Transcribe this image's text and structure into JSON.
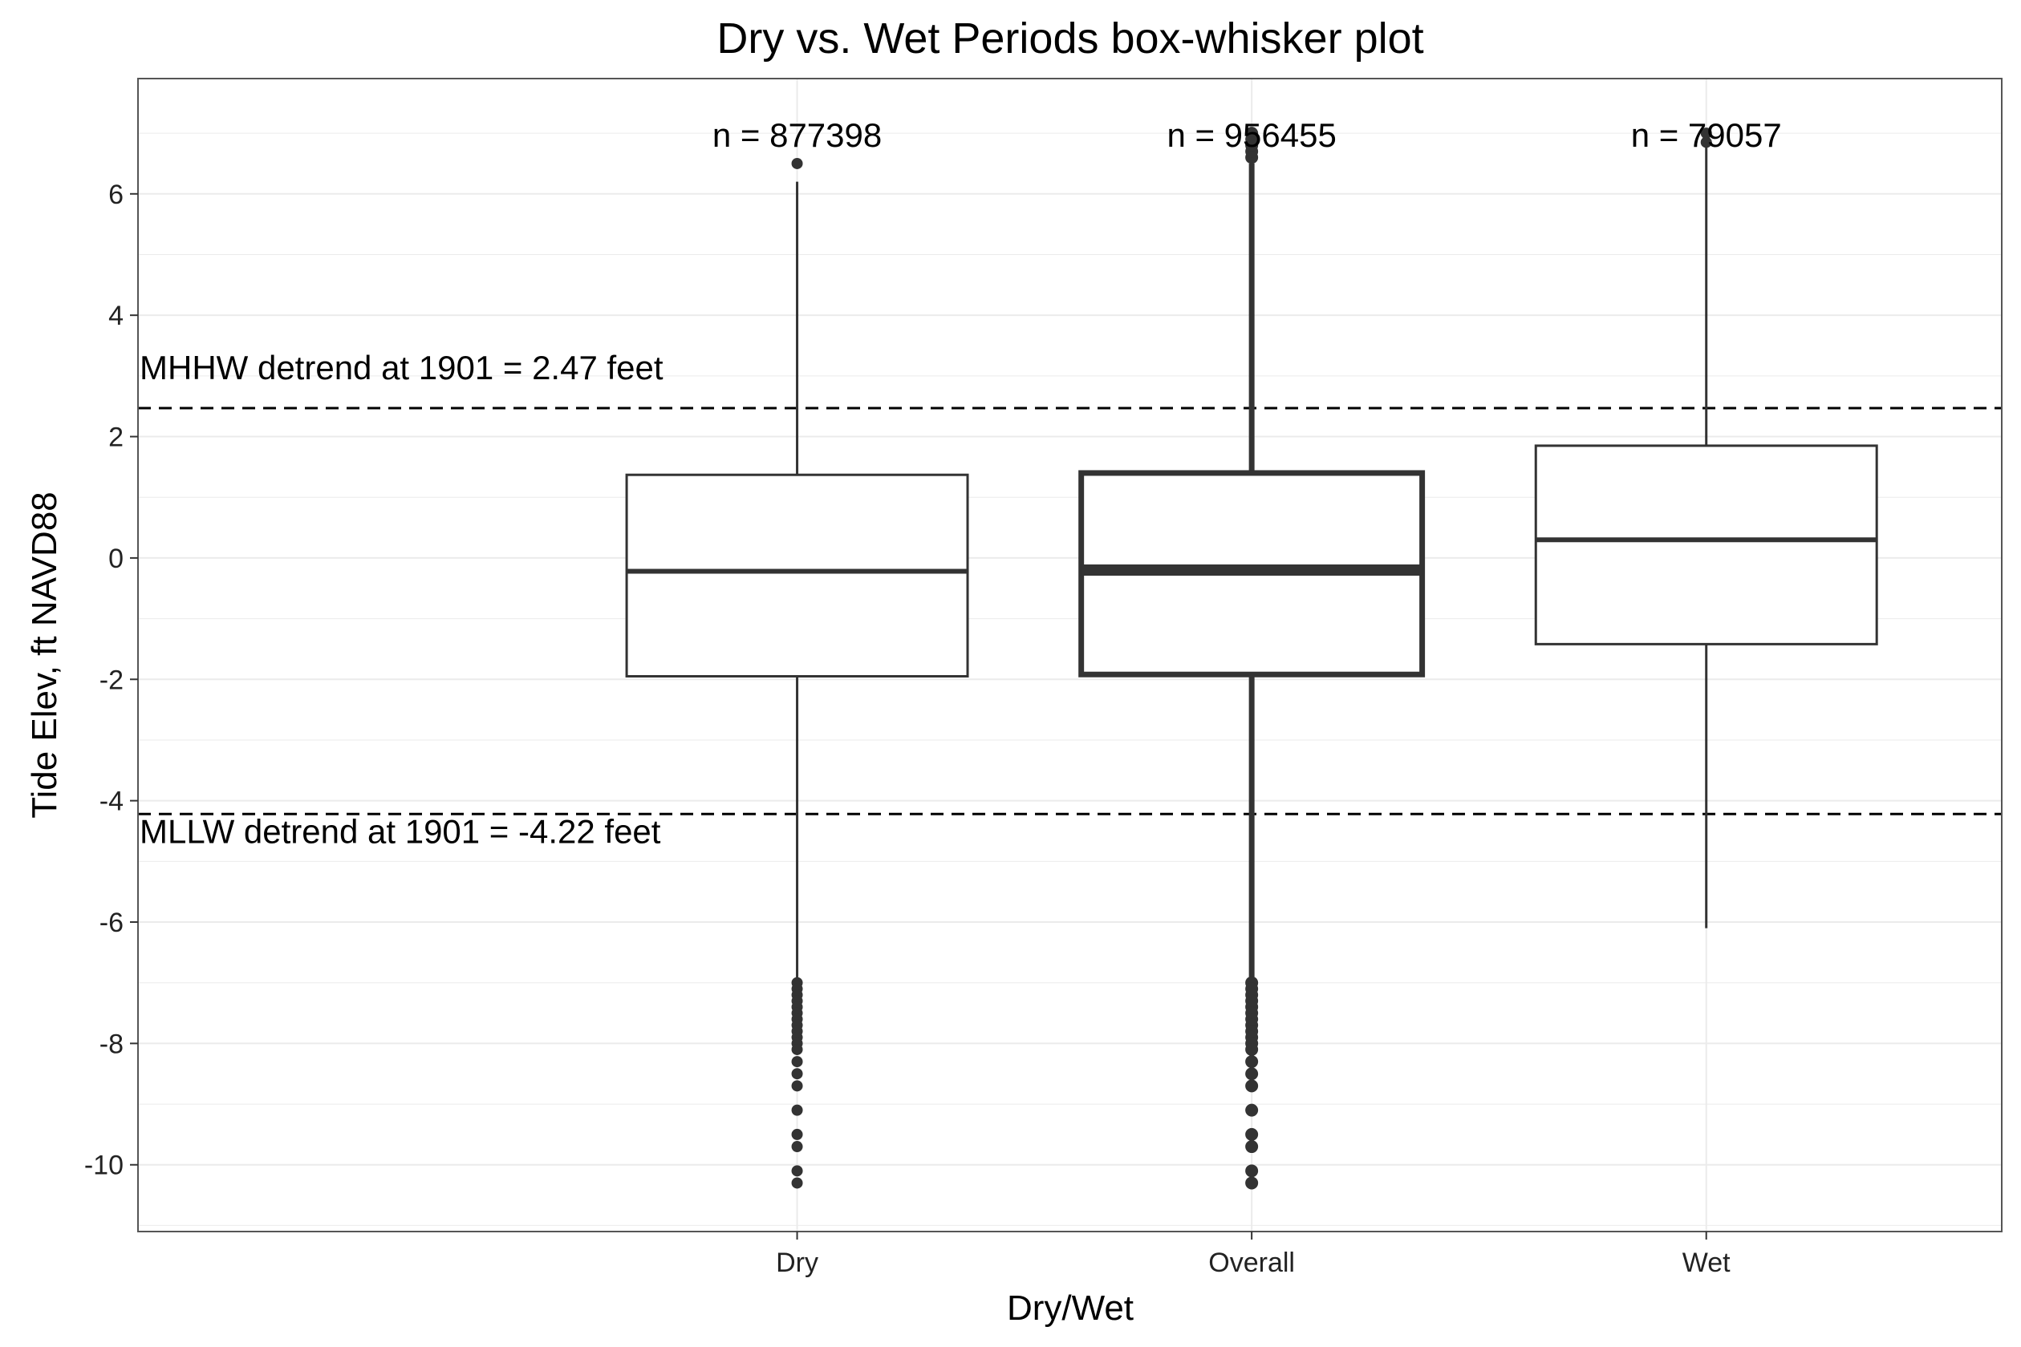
{
  "chart_data": {
    "type": "box",
    "title": "Dry vs. Wet Periods box-whisker plot",
    "xlabel": "Dry/Wet",
    "ylabel": "Tide Elev, ft NAVD88",
    "ylim": [
      -11.1,
      7.9
    ],
    "yticks": [
      6,
      4,
      2,
      0,
      -2,
      -4,
      -6,
      -8,
      -10
    ],
    "grid": true,
    "categories": [
      "Dry",
      "Overall",
      "Wet"
    ],
    "boxes": [
      {
        "category": "Dry",
        "n_label": "n = 877398",
        "whisker_low": -6.95,
        "q1": -1.95,
        "median": -0.22,
        "q3": 1.37,
        "whisker_high": 6.2,
        "outliers": [
          6.5,
          -7.0,
          -7.1,
          -7.2,
          -7.3,
          -7.4,
          -7.5,
          -7.6,
          -7.7,
          -7.8,
          -7.9,
          -8.0,
          -8.1,
          -8.3,
          -8.5,
          -8.7,
          -9.1,
          -9.5,
          -9.7,
          -10.1,
          -10.3
        ],
        "emphasis": false
      },
      {
        "category": "Overall",
        "n_label": "n = 956455",
        "whisker_low": -6.95,
        "q1": -1.92,
        "median": -0.2,
        "q3": 1.4,
        "whisker_high": 6.5,
        "outliers": [
          6.6,
          6.7,
          6.8,
          6.9,
          7.0,
          -7.0,
          -7.1,
          -7.2,
          -7.3,
          -7.4,
          -7.5,
          -7.6,
          -7.7,
          -7.8,
          -7.9,
          -8.0,
          -8.1,
          -8.3,
          -8.5,
          -8.7,
          -9.1,
          -9.5,
          -9.7,
          -10.1,
          -10.3
        ],
        "emphasis": true
      },
      {
        "category": "Wet",
        "n_label": "n = 79057",
        "whisker_low": -6.1,
        "q1": -1.42,
        "median": 0.3,
        "q3": 1.85,
        "whisker_high": 6.8,
        "outliers": [
          6.85,
          7.0
        ],
        "emphasis": false
      }
    ],
    "hlines": [
      {
        "y": 2.47,
        "label": "MHHW detrend at 1901 = 2.47 feet",
        "style": "dashed"
      },
      {
        "y": -4.22,
        "label": "MLLW detrend at 1901 = -4.22 feet",
        "style": "dashed"
      }
    ],
    "colors": {
      "box_line": "#333333",
      "grid": "#ebebeb",
      "panel_border": "#555555",
      "text": "#000000"
    }
  }
}
